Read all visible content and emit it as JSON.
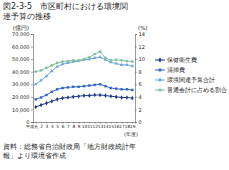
{
  "chart_data": {
    "type": "line",
    "title": "図2-3-5　市区町村における環境関連予算の推移",
    "y_label": "(億円)",
    "y2_label": "(%)",
    "x_label": "(年度)",
    "source": "資料：総務省自治財政局「地方財政統計年報」より環境省作成",
    "categories": [
      "平成元",
      "2",
      "3",
      "4",
      "5",
      "6",
      "7",
      "8",
      "9",
      "10",
      "11",
      "12",
      "13",
      "14",
      "15",
      "16",
      "17",
      "18",
      "19"
    ],
    "series": [
      {
        "name": "保健衛生費",
        "color": "#1f3a8a",
        "marker": "diamond",
        "values": [
          12000,
          13500,
          15000,
          16500,
          18000,
          19000,
          19500,
          20000,
          20500,
          21000,
          21000,
          21500,
          21500,
          21000,
          20500,
          20000,
          19500,
          19500,
          19000
        ]
      },
      {
        "name": "清掃費",
        "color": "#3366cc",
        "marker": "square",
        "values": [
          18000,
          19500,
          21500,
          24000,
          26000,
          27000,
          27500,
          28000,
          28000,
          28500,
          29000,
          29500,
          30000,
          28500,
          27000,
          26500,
          26000,
          26000,
          25500
        ]
      },
      {
        "name": "環境関連予算合計",
        "color": "#6fa8dc",
        "marker": "triangle",
        "values": [
          30000,
          33000,
          36500,
          40500,
          44000,
          46000,
          47000,
          48000,
          48500,
          49500,
          50000,
          51000,
          51500,
          49500,
          47500,
          46500,
          45500,
          45500,
          44500
        ]
      },
      {
        "name": "普通会計に占める割合",
        "color": "#7fbf9f",
        "marker": "circle",
        "axis": "y2",
        "values": [
          8.0,
          8.2,
          8.6,
          9.0,
          9.4,
          9.6,
          9.7,
          9.8,
          9.8,
          10.0,
          10.3,
          10.8,
          11.2,
          10.2,
          9.8,
          9.9,
          9.8,
          9.7,
          9.6
        ]
      }
    ],
    "ylim": [
      0,
      70000
    ],
    "yticks": [
      0,
      {
        "value": 10000,
        "label": "10,000"
      },
      {
        "value": 20000,
        "label": "20,000"
      },
      {
        "value": 30000,
        "label": "30,000"
      },
      {
        "value": 40000,
        "label": "40,000"
      },
      {
        "value": 50000,
        "label": "50,000"
      },
      {
        "value": 60000,
        "label": "60,000"
      },
      {
        "value": 70000,
        "label": "70,000"
      }
    ],
    "y2lim": [
      0,
      14
    ],
    "y2ticks": [
      0,
      2,
      4,
      6,
      8,
      10,
      12,
      14
    ],
    "grid": false,
    "legend": "right"
  }
}
